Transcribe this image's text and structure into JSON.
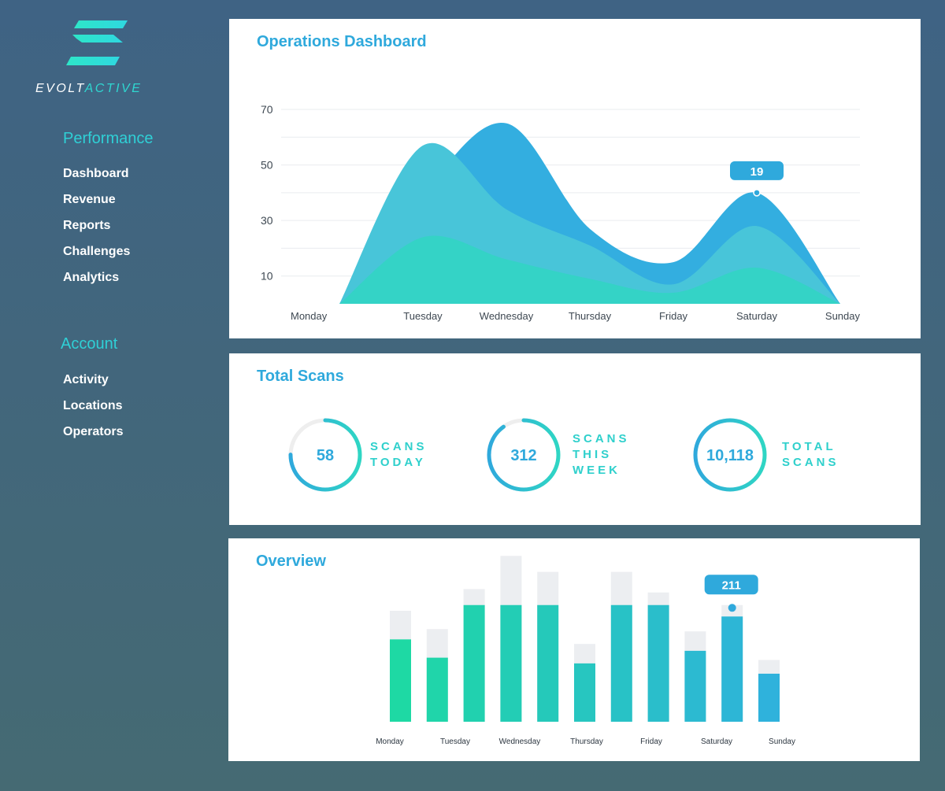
{
  "brand": {
    "name_part1": "EVOLT",
    "name_part2": "ACTIVE"
  },
  "colors": {
    "accent": "#2fa9dc",
    "teal": "#2fd6c4",
    "sidebar_head": "#2fd0d6"
  },
  "sidebar": {
    "performance": {
      "heading": "Performance",
      "items": [
        {
          "label": "Dashboard"
        },
        {
          "label": "Revenue"
        },
        {
          "label": "Reports"
        },
        {
          "label": "Challenges"
        },
        {
          "label": "Analytics"
        }
      ]
    },
    "account": {
      "heading": "Account",
      "items": [
        {
          "label": "Activity"
        },
        {
          "label": "Locations"
        },
        {
          "label": "Operators"
        }
      ]
    }
  },
  "operations": {
    "title": "Operations Dashboard",
    "chart_data": {
      "type": "area",
      "x": [
        "Monday",
        "Tuesday",
        "Wednesday",
        "Thursday",
        "Friday",
        "Saturday",
        "Sunday"
      ],
      "y_ticks": [
        70,
        50,
        30,
        10
      ],
      "ylim": [
        0,
        70
      ],
      "grid": true,
      "series": [
        {
          "values": [
            0,
            24,
            16,
            9,
            4,
            13,
            0
          ],
          "color": "#34d3c6"
        },
        {
          "values": [
            0,
            57,
            34,
            21,
            7,
            28,
            0
          ],
          "color": "#48c5d9"
        },
        {
          "values": [
            0,
            40,
            65,
            27,
            15,
            40,
            0
          ],
          "color": "#33aee0"
        }
      ],
      "tooltip": {
        "x": "Saturday",
        "label": "19"
      }
    }
  },
  "scans": {
    "title": "Total Scans",
    "stats": [
      {
        "value": "58",
        "label_lines": [
          "SCANS",
          "TODAY"
        ],
        "progress": 0.75
      },
      {
        "value": "312",
        "label_lines": [
          "SCANS",
          "THIS",
          "WEEK"
        ],
        "progress": 0.9
      },
      {
        "value": "10,118",
        "label_lines": [
          "TOTAL",
          "SCANS"
        ],
        "progress": 1.0
      }
    ]
  },
  "overview": {
    "title": "Overview",
    "chart_data": {
      "type": "bar",
      "categories": [
        "Monday",
        "Tuesday",
        "Wednesday",
        "Thursday",
        "Friday",
        "Saturday",
        "Sunday"
      ],
      "bars": [
        {
          "value": 72,
          "total": 97
        },
        {
          "value": 56,
          "total": 81
        },
        {
          "value": 102,
          "total": 116
        },
        {
          "value": 102,
          "total": 145
        },
        {
          "value": 102,
          "total": 131
        },
        {
          "value": 51,
          "total": 68
        },
        {
          "value": 102,
          "total": 131
        },
        {
          "value": 102,
          "total": 113
        },
        {
          "value": 62,
          "total": 79
        },
        {
          "value": 92,
          "total": 102
        },
        {
          "value": 42,
          "total": 54
        }
      ],
      "ylim": [
        0,
        150
      ],
      "tooltip": {
        "bar_index": 9,
        "label": "211"
      }
    }
  }
}
